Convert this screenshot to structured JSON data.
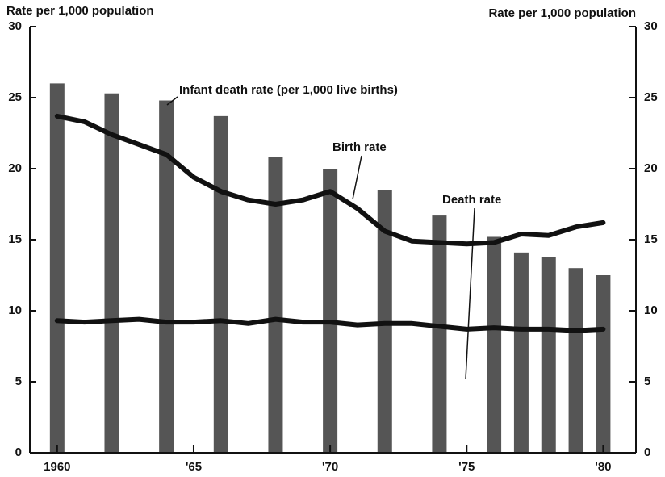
{
  "chart_data": {
    "type": "bar_line",
    "ylabel": "Rate per 1,000 population",
    "y2label": "Rate per 1,000 population",
    "xlim": [
      1959,
      1981.2
    ],
    "xticks": [
      1960,
      {
        "value": 1965,
        "label": "'65"
      },
      {
        "value": 1970,
        "label": "'70"
      },
      {
        "value": 1975,
        "label": "'75"
      },
      {
        "value": 1980,
        "label": "'80"
      }
    ],
    "ylim": [
      0,
      30
    ],
    "yticks": [
      0,
      5,
      10,
      15,
      20,
      25,
      30
    ],
    "y2lim": [
      0,
      30
    ],
    "y2ticks": [
      0,
      5,
      10,
      15,
      20,
      25,
      30
    ],
    "series": [
      {
        "name": "Infant death rate (per 1,000 live births)",
        "type": "bar",
        "color": "#555555",
        "x": [
          1960,
          1962,
          1964,
          1966,
          1968,
          1970,
          1972,
          1974,
          1976,
          1977,
          1978,
          1979,
          1980
        ],
        "values": [
          26.0,
          25.3,
          24.8,
          23.7,
          20.8,
          20.0,
          18.5,
          16.7,
          15.2,
          14.1,
          13.8,
          13.0,
          12.5
        ]
      },
      {
        "name": "Birth rate",
        "type": "line",
        "color": "#111111",
        "x": [
          1960,
          1961,
          1962,
          1963,
          1964,
          1965,
          1966,
          1967,
          1968,
          1969,
          1970,
          1971,
          1972,
          1973,
          1974,
          1975,
          1976,
          1977,
          1978,
          1979,
          1980
        ],
        "values": [
          23.7,
          23.3,
          22.4,
          21.7,
          21.0,
          19.4,
          18.4,
          17.8,
          17.5,
          17.8,
          18.4,
          17.2,
          15.6,
          14.9,
          14.8,
          14.7,
          14.8,
          15.4,
          15.3,
          15.9,
          16.2
        ]
      },
      {
        "name": "Death rate",
        "type": "line",
        "color": "#111111",
        "axis": "y2",
        "x": [
          1960,
          1961,
          1962,
          1963,
          1964,
          1965,
          1966,
          1967,
          1968,
          1969,
          1970,
          1971,
          1972,
          1973,
          1974,
          1975,
          1976,
          1977,
          1978,
          1979,
          1980
        ],
        "values": [
          9.3,
          9.2,
          9.3,
          9.4,
          9.2,
          9.2,
          9.3,
          9.1,
          9.4,
          9.2,
          9.2,
          9.0,
          9.1,
          9.1,
          8.9,
          8.7,
          8.8,
          8.7,
          8.7,
          8.6,
          8.7
        ]
      }
    ]
  }
}
